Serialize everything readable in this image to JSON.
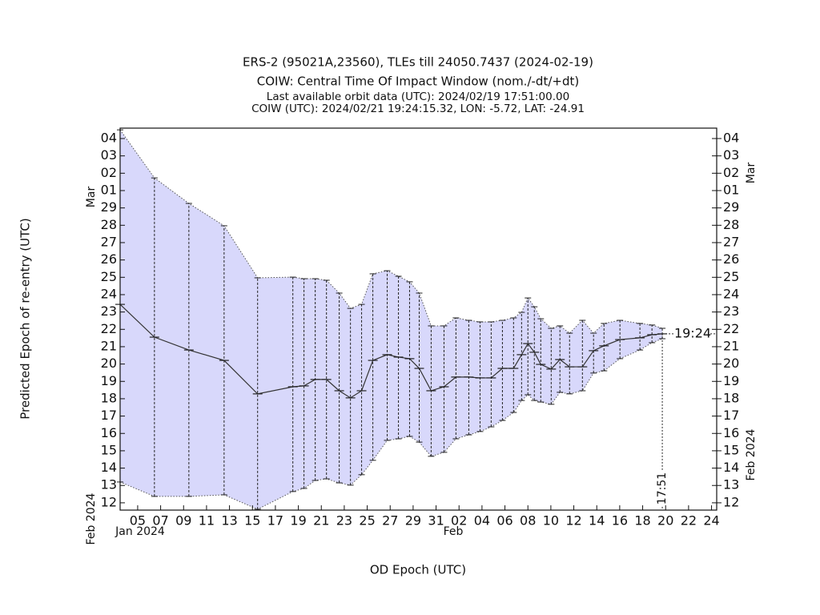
{
  "chart_data": {
    "type": "band-line",
    "title": "ERS-2 (95021A,23560), TLEs till 24050.7437 (2024-02-19)",
    "subtitle": "COIW: Central Time Of Impact Window (nom./-dt/+dt)",
    "notes": [
      "Last available orbit data (UTC): 2024/02/19 17:51:00.00",
      "COIW (UTC): 2024/02/21 19:24:15.32, LON: -5.72, LAT: -24.91"
    ],
    "x_label": "OD Epoch (UTC)",
    "y_label": "Predicted Epoch of re-entry (UTC)",
    "x_group_labels": [
      "Jan 2024",
      "Feb"
    ],
    "y_group_labels": [
      "Mar",
      "Feb 2024"
    ],
    "annotations": [
      "19:24",
      "17:51"
    ],
    "color": "#333333",
    "band_color": "#d8d8fb",
    "x": [
      3.47,
      6.46,
      9.46,
      12.53,
      15.45,
      18.52,
      19.49,
      20.47,
      21.45,
      22.56,
      23.54,
      24.51,
      25.49,
      26.74,
      27.72,
      28.69,
      29.53,
      30.57,
      31.69,
      32.73,
      33.85,
      34.83,
      35.8,
      36.78,
      37.75,
      38.45,
      39.0,
      39.56,
      40.12,
      41.03,
      41.79,
      42.63,
      43.75,
      44.72,
      45.63,
      47.02,
      48.76,
      49.81,
      50.71
    ],
    "values": [
      23.44,
      21.55,
      20.81,
      20.21,
      18.28,
      18.69,
      18.74,
      19.11,
      19.11,
      18.46,
      18.05,
      18.46,
      20.21,
      20.54,
      20.4,
      20.31,
      19.75,
      18.46,
      18.69,
      19.25,
      19.25,
      19.2,
      19.2,
      19.75,
      19.75,
      20.54,
      21.18,
      20.68,
      19.98,
      19.71,
      20.26,
      19.84,
      19.84,
      20.77,
      21.05,
      21.41,
      21.51,
      21.69,
      21.74
    ],
    "lower_values": [
      13.2,
      12.37,
      12.37,
      12.46,
      11.63,
      12.65,
      12.83,
      13.29,
      13.38,
      13.15,
      13.02,
      13.62,
      14.45,
      15.6,
      15.69,
      15.83,
      15.5,
      14.68,
      14.91,
      15.69,
      15.92,
      16.11,
      16.38,
      16.75,
      17.21,
      17.9,
      18.23,
      17.9,
      17.81,
      17.68,
      18.37,
      18.28,
      18.46,
      19.48,
      19.61,
      20.31,
      20.81,
      21.23,
      21.46
    ],
    "upper_values": [
      33.5,
      30.73,
      29.26,
      27.97,
      24.97,
      25.01,
      24.92,
      24.92,
      24.83,
      24.09,
      23.21,
      23.44,
      25.2,
      25.38,
      25.06,
      24.74,
      24.09,
      22.2,
      22.2,
      22.66,
      22.52,
      22.43,
      22.43,
      22.52,
      22.66,
      22.98,
      23.81,
      23.3,
      22.61,
      22.06,
      22.2,
      21.78,
      22.52,
      21.78,
      22.34,
      22.52,
      22.34,
      22.25,
      22.06
    ],
    "xlim": [
      3.47,
      55.45
    ],
    "xticks": [
      {
        "value": 5,
        "label": "05"
      },
      {
        "value": 7,
        "label": "07"
      },
      {
        "value": 9,
        "label": "09"
      },
      11,
      13,
      15,
      17,
      19,
      21,
      23,
      25,
      27,
      29,
      31,
      {
        "value": 33,
        "label": "02"
      },
      {
        "value": 35,
        "label": "04"
      },
      {
        "value": 37,
        "label": "06"
      },
      {
        "value": 39,
        "label": "08"
      },
      {
        "value": 41,
        "label": "10"
      },
      {
        "value": 43,
        "label": "12"
      },
      {
        "value": 45,
        "label": "14"
      },
      {
        "value": 47,
        "label": "16"
      },
      {
        "value": 49,
        "label": "18"
      },
      {
        "value": 51,
        "label": "20"
      },
      {
        "value": 53,
        "label": "22"
      },
      {
        "value": 55,
        "label": "24"
      }
    ],
    "ylim": [
      11.58,
      33.6
    ],
    "yticks": [
      12,
      13,
      14,
      15,
      16,
      17,
      18,
      19,
      20,
      21,
      22,
      23,
      24,
      25,
      26,
      27,
      28,
      29,
      {
        "value": 30,
        "label": "01"
      },
      {
        "value": 31,
        "label": "02"
      },
      {
        "value": 32,
        "label": "03"
      },
      {
        "value": 33,
        "label": "04"
      }
    ]
  }
}
